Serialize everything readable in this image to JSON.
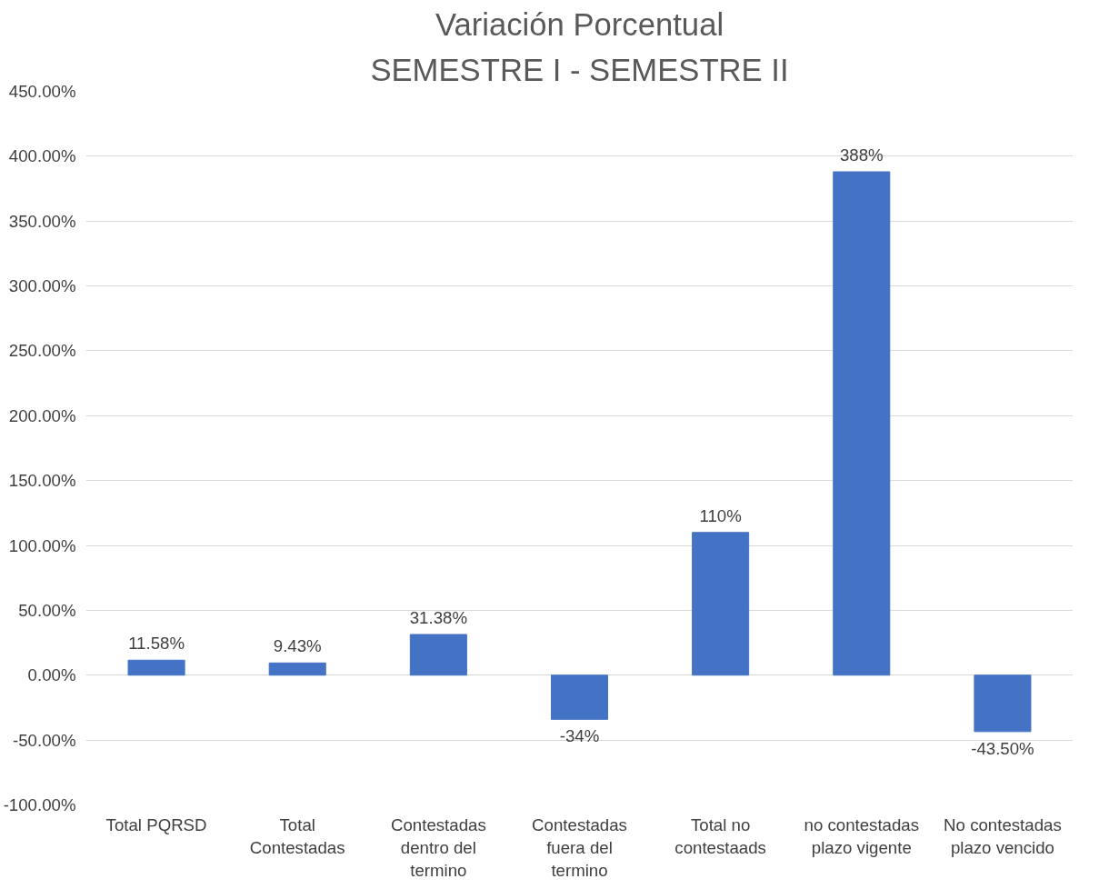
{
  "chart_data": {
    "type": "bar",
    "title": "Variación Porcentual",
    "subtitle": "SEMESTRE I - SEMESTRE II",
    "categories": [
      "Total PQRSD",
      "Total Contestadas",
      "Contestadas dentro del termino",
      "Contestadas fuera del termino",
      "Total no contestaads",
      "no contestadas plazo vigente",
      "No contestadas plazo vencido"
    ],
    "values": [
      11.58,
      9.43,
      31.38,
      -34,
      110,
      388,
      -43.5
    ],
    "value_labels": [
      "11.58%",
      "9.43%",
      "31.38%",
      "-34%",
      "110%",
      "388%",
      "-43.50%"
    ],
    "color": "#4472c4",
    "ylim": [
      -100,
      450
    ],
    "yticks": [
      {
        "value": -100,
        "label": "-100.00%"
      },
      {
        "value": -50,
        "label": "-50.00%"
      },
      {
        "value": 0,
        "label": "0.00%"
      },
      {
        "value": 50,
        "label": "50.00%"
      },
      {
        "value": 100,
        "label": "100.00%"
      },
      {
        "value": 150,
        "label": "150.00%"
      },
      {
        "value": 200,
        "label": "200.00%"
      },
      {
        "value": 250,
        "label": "250.00%"
      },
      {
        "value": 300,
        "label": "300.00%"
      },
      {
        "value": 350,
        "label": "350.00%"
      },
      {
        "value": 400,
        "label": "400.00%"
      },
      {
        "value": 450,
        "label": "450.00%"
      }
    ],
    "grid": "y"
  }
}
